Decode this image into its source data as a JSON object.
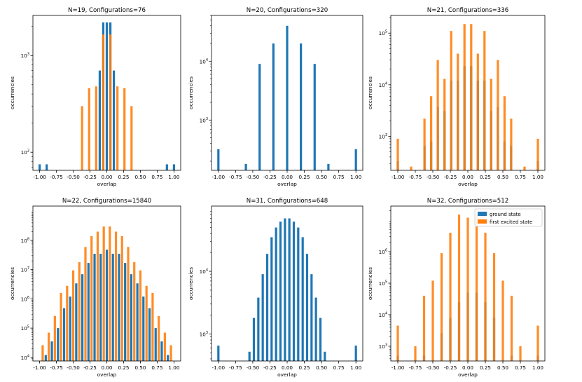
{
  "figure": {
    "colors": {
      "ground": "#1f77b4",
      "excited": "#ff7f0e"
    },
    "legend": {
      "ground_label": "ground state",
      "excited_label": "first excited state"
    }
  },
  "chart_data": [
    {
      "type": "bar",
      "title": "N=19,  Configurations=76",
      "xlabel": "overlap",
      "ylabel": "occurrencies",
      "yscale": "log",
      "xlim": [
        -1.1,
        1.1
      ],
      "ylim": [
        65,
        2600
      ],
      "xticks": [
        "-1.00",
        "-0.75",
        "-0.50",
        "-0.25",
        "0.00",
        "0.25",
        "0.50",
        "0.75",
        "1.00"
      ],
      "yticks": [
        {
          "value": 100,
          "base": "10",
          "exp": "2"
        },
        {
          "value": 1000,
          "base": "10",
          "exp": "3"
        }
      ],
      "series": [
        {
          "name": "ground state",
          "x": [
            -1.0,
            -0.895,
            -0.105,
            -0.053,
            0.0,
            0.053,
            0.105,
            0.895,
            1.0
          ],
          "values": [
            75,
            75,
            700,
            2200,
            2200,
            2200,
            700,
            75,
            75
          ]
        },
        {
          "name": "first excited state",
          "x": [
            -0.368,
            -0.263,
            -0.158,
            -0.053,
            0.053,
            0.158,
            0.263,
            0.368
          ],
          "values": [
            300,
            460,
            480,
            1650,
            1650,
            480,
            460,
            300
          ]
        }
      ]
    },
    {
      "type": "bar",
      "title": "N=20,  Configurations=320",
      "xlabel": "overlap",
      "ylabel": "occurrencies",
      "yscale": "log",
      "xlim": [
        -1.1,
        1.1
      ],
      "ylim": [
        140,
        60000
      ],
      "xticks": [
        "-1.00",
        "-0.75",
        "-0.50",
        "-0.25",
        "0.00",
        "0.25",
        "0.50",
        "0.75",
        "1.00"
      ],
      "yticks": [
        {
          "value": 1000,
          "base": "10",
          "exp": "3"
        },
        {
          "value": 10000,
          "base": "10",
          "exp": "4"
        }
      ],
      "series": [
        {
          "name": "ground state",
          "x": [
            -1.0,
            -0.6,
            -0.4,
            -0.2,
            0.0,
            0.2,
            0.4,
            0.6,
            1.0
          ],
          "values": [
            320,
            180,
            9000,
            20000,
            40000,
            20000,
            9000,
            180,
            320
          ]
        },
        {
          "name": "first excited state",
          "x": [],
          "values": []
        }
      ]
    },
    {
      "type": "bar",
      "title": "N=21,  Configurations=336",
      "xlabel": "overlap",
      "ylabel": "occurrencies",
      "yscale": "log",
      "xlim": [
        -1.1,
        1.1
      ],
      "ylim": [
        220,
        220000
      ],
      "xticks": [
        "-1.00",
        "-0.75",
        "-0.50",
        "-0.25",
        "0.00",
        "0.25",
        "0.50",
        "0.75",
        "1.00"
      ],
      "yticks": [
        {
          "value": 1000,
          "base": "10",
          "exp": "3"
        },
        {
          "value": 10000,
          "base": "10",
          "exp": "4"
        },
        {
          "value": 100000,
          "base": "10",
          "exp": "5"
        }
      ],
      "series": [
        {
          "name": "ground state",
          "x": [
            -1.0,
            -0.619,
            -0.524,
            -0.429,
            -0.333,
            -0.238,
            -0.143,
            -0.048,
            0.048,
            0.143,
            0.238,
            0.333,
            0.429,
            0.524,
            0.619,
            1.0
          ],
          "values": [
            330,
            650,
            800,
            3700,
            3100,
            12000,
            12000,
            23000,
            23000,
            12000,
            12000,
            3100,
            3700,
            800,
            650,
            330
          ]
        },
        {
          "name": "first excited state",
          "x": [
            -1.0,
            -0.81,
            -0.619,
            -0.524,
            -0.429,
            -0.333,
            -0.238,
            -0.143,
            -0.048,
            0.048,
            0.143,
            0.238,
            0.333,
            0.429,
            0.524,
            0.619,
            0.81,
            1.0
          ],
          "values": [
            900,
            260,
            2200,
            6000,
            30000,
            13000,
            110000,
            40000,
            150000,
            150000,
            40000,
            110000,
            13000,
            30000,
            6000,
            2200,
            260,
            900
          ]
        }
      ]
    },
    {
      "type": "bar",
      "title": "N=22,  Configurations=15840",
      "xlabel": "overlap",
      "ylabel": "occurrencies",
      "yscale": "log",
      "xlim": [
        -1.1,
        1.1
      ],
      "ylim": [
        7500,
        1500000000
      ],
      "xticks": [
        "-1.00",
        "-0.75",
        "-0.50",
        "-0.25",
        "0.00",
        "0.25",
        "0.50",
        "0.75",
        "1.00"
      ],
      "yticks": [
        {
          "value": 10000,
          "base": "10",
          "exp": "4"
        },
        {
          "value": 100000,
          "base": "10",
          "exp": "5"
        },
        {
          "value": 1000000,
          "base": "10",
          "exp": "6"
        },
        {
          "value": 10000000,
          "base": "10",
          "exp": "7"
        },
        {
          "value": 100000000,
          "base": "10",
          "exp": "8"
        }
      ],
      "series": [
        {
          "name": "ground state",
          "x": [
            -0.909,
            -0.818,
            -0.727,
            -0.636,
            -0.545,
            -0.455,
            -0.364,
            -0.273,
            -0.182,
            -0.091,
            0.0,
            0.091,
            0.182,
            0.273,
            0.364,
            0.455,
            0.545,
            0.636,
            0.727,
            0.818,
            0.909
          ],
          "values": [
            12000,
            35000,
            100000,
            480000,
            1200000,
            3400000,
            7000000,
            17000000,
            35000000,
            35000000,
            48000000,
            35000000,
            35000000,
            17000000,
            7000000,
            3400000,
            1200000,
            480000,
            100000,
            35000,
            12000
          ]
        },
        {
          "name": "first excited state",
          "x": [
            -0.955,
            -0.864,
            -0.773,
            -0.682,
            -0.591,
            -0.5,
            -0.409,
            -0.318,
            -0.227,
            -0.136,
            -0.045,
            0.045,
            0.136,
            0.227,
            0.318,
            0.409,
            0.5,
            0.591,
            0.682,
            0.773,
            0.864,
            0.955
          ],
          "values": [
            26000,
            70000,
            260000,
            1600000,
            2800000,
            9500000,
            18000000,
            60000000,
            140000000,
            200000000,
            300000000,
            300000000,
            200000000,
            140000000,
            60000000,
            18000000,
            9500000,
            2800000,
            1600000,
            260000,
            70000,
            26000
          ]
        }
      ]
    },
    {
      "type": "bar",
      "title": "N=31,  Configurations=648",
      "xlabel": "overlap",
      "ylabel": "occurrencies",
      "yscale": "log",
      "xlim": [
        -1.1,
        1.1
      ],
      "ylim": [
        370,
        110000
      ],
      "xticks": [
        "-1.00",
        "-0.75",
        "-0.50",
        "-0.25",
        "0.00",
        "0.25",
        "0.50",
        "0.75",
        "1.00"
      ],
      "yticks": [
        {
          "value": 1000,
          "base": "10",
          "exp": "3"
        },
        {
          "value": 10000,
          "base": "10",
          "exp": "4"
        }
      ],
      "series": [
        {
          "name": "ground state",
          "x": [
            -1.0,
            -0.548,
            -0.484,
            -0.419,
            -0.355,
            -0.29,
            -0.226,
            -0.161,
            -0.097,
            -0.032,
            0.032,
            0.097,
            0.161,
            0.226,
            0.29,
            0.355,
            0.419,
            0.484,
            0.548,
            1.0
          ],
          "values": [
            650,
            520,
            1800,
            3800,
            9000,
            19000,
            35000,
            50000,
            62000,
            70000,
            70000,
            62000,
            50000,
            35000,
            19000,
            9000,
            3800,
            1800,
            520,
            650
          ]
        },
        {
          "name": "first excited state",
          "x": [],
          "values": []
        }
      ]
    },
    {
      "type": "bar",
      "title": "N=32,  Configurations=512",
      "xlabel": "overlap",
      "ylabel": "occurrencies",
      "yscale": "log",
      "xlim": [
        -1.1,
        1.1
      ],
      "ylim": [
        340,
        28000000
      ],
      "legend": "top-right",
      "xticks": [
        "-1.00",
        "-0.75",
        "-0.50",
        "-0.25",
        "0.00",
        "0.25",
        "0.50",
        "0.75",
        "1.00"
      ],
      "yticks": [
        {
          "value": 1000,
          "base": "10",
          "exp": "3"
        },
        {
          "value": 10000,
          "base": "10",
          "exp": "4"
        },
        {
          "value": 100000,
          "base": "10",
          "exp": "5"
        },
        {
          "value": 1000000,
          "base": "10",
          "exp": "6"
        }
      ],
      "series": [
        {
          "name": "ground state",
          "x": [
            -1.0,
            -0.625,
            -0.375,
            -0.25,
            -0.125,
            0.0,
            0.125,
            0.25,
            0.375,
            0.625,
            1.0
          ],
          "values": [
            500,
            500,
            2600,
            8000,
            25000,
            50000,
            50000,
            25000,
            8000,
            500,
            500
          ]
        },
        {
          "name": "first excited state",
          "x": [
            -1.0,
            -0.75,
            -0.625,
            -0.5,
            -0.375,
            -0.25,
            -0.125,
            0.0,
            0.125,
            0.25,
            0.375,
            0.5,
            0.625,
            0.75,
            1.0
          ],
          "values": [
            4500,
            1000,
            40000,
            120000,
            900000,
            4000000,
            15000000,
            12000000,
            15000000,
            4000000,
            900000,
            120000,
            40000,
            1000,
            4500
          ]
        }
      ]
    }
  ]
}
